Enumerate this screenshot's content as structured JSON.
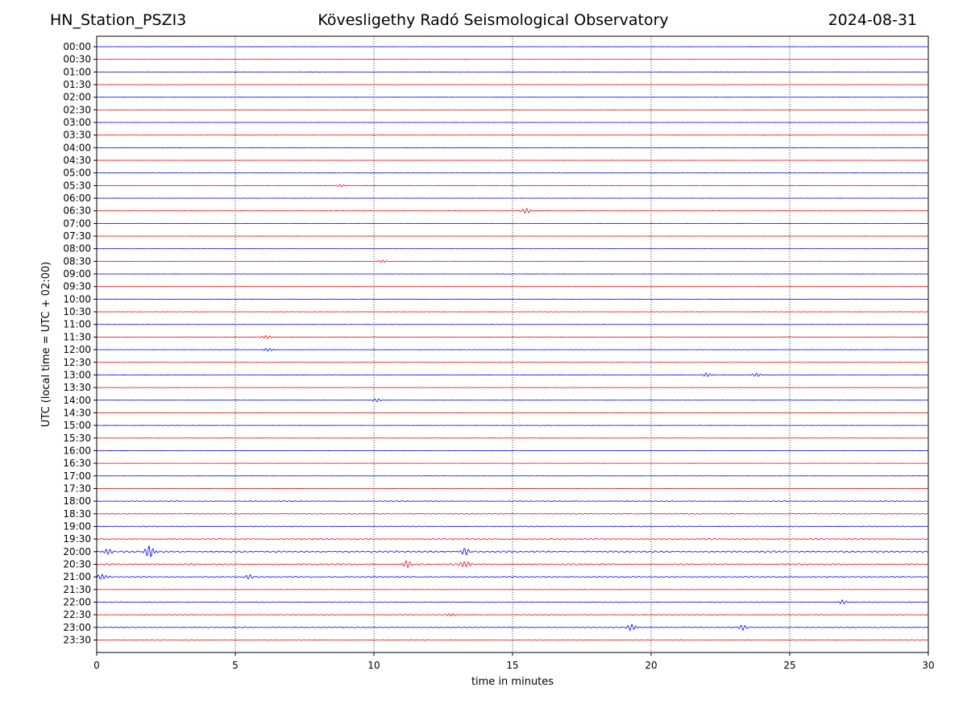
{
  "header": {
    "station": "HN_Station_PSZI3",
    "observatory": "Kövesligethy Radó Seismological Observatory",
    "date": "2024-08-31"
  },
  "chart_data": {
    "type": "line",
    "title": "Kövesligethy Radó Seismological Observatory",
    "xlabel": "time in minutes",
    "ylabel": "UTC (local time = UTC + 02:00)",
    "xlim": [
      0,
      30
    ],
    "x_ticks": [
      0,
      5,
      10,
      15,
      20,
      25,
      30
    ],
    "vertical_grid": true,
    "colors": [
      "#0000ff",
      "#ff0000"
    ],
    "rows": [
      {
        "label": "00:00",
        "level": 0.1
      },
      {
        "label": "00:30",
        "level": 0.1
      },
      {
        "label": "01:00",
        "level": 0.12
      },
      {
        "label": "01:30",
        "level": 0.1
      },
      {
        "label": "02:00",
        "level": 0.1
      },
      {
        "label": "02:30",
        "level": 0.1
      },
      {
        "label": "03:00",
        "level": 0.1
      },
      {
        "label": "03:30",
        "level": 0.12
      },
      {
        "label": "04:00",
        "level": 0.1
      },
      {
        "label": "04:30",
        "level": 0.1
      },
      {
        "label": "05:00",
        "level": 0.18
      },
      {
        "label": "05:30",
        "level": 0.15
      },
      {
        "label": "06:00",
        "level": 0.12
      },
      {
        "label": "06:30",
        "level": 0.15
      },
      {
        "label": "07:00",
        "level": 0.12
      },
      {
        "label": "07:30",
        "level": 0.1
      },
      {
        "label": "08:00",
        "level": 0.1
      },
      {
        "label": "08:30",
        "level": 0.15
      },
      {
        "label": "09:00",
        "level": 0.15
      },
      {
        "label": "09:30",
        "level": 0.1
      },
      {
        "label": "10:00",
        "level": 0.15
      },
      {
        "label": "10:30",
        "level": 0.18
      },
      {
        "label": "11:00",
        "level": 0.18
      },
      {
        "label": "11:30",
        "level": 0.2
      },
      {
        "label": "12:00",
        "level": 0.2
      },
      {
        "label": "12:30",
        "level": 0.15
      },
      {
        "label": "13:00",
        "level": 0.25
      },
      {
        "label": "13:30",
        "level": 0.12
      },
      {
        "label": "14:00",
        "level": 0.12
      },
      {
        "label": "14:30",
        "level": 0.15
      },
      {
        "label": "15:00",
        "level": 0.15
      },
      {
        "label": "15:30",
        "level": 0.1
      },
      {
        "label": "16:00",
        "level": 0.1
      },
      {
        "label": "16:30",
        "level": 0.1
      },
      {
        "label": "17:00",
        "level": 0.1
      },
      {
        "label": "17:30",
        "level": 0.12
      },
      {
        "label": "18:00",
        "level": 0.4
      },
      {
        "label": "18:30",
        "level": 0.45
      },
      {
        "label": "19:00",
        "level": 0.45
      },
      {
        "label": "19:30",
        "level": 0.6
      },
      {
        "label": "20:00",
        "level": 0.9
      },
      {
        "label": "20:30",
        "level": 0.8
      },
      {
        "label": "21:00",
        "level": 0.6
      },
      {
        "label": "21:30",
        "level": 0.2
      },
      {
        "label": "22:00",
        "level": 0.45
      },
      {
        "label": "22:30",
        "level": 0.4
      },
      {
        "label": "23:00",
        "level": 0.5
      },
      {
        "label": "23:30",
        "level": 0.4
      }
    ],
    "events": [
      {
        "row": "06:30",
        "minute": 15.5,
        "amplitude": 3.0
      },
      {
        "row": "05:30",
        "minute": 8.8,
        "amplitude": 1.5
      },
      {
        "row": "08:30",
        "minute": 10.3,
        "amplitude": 1.5
      },
      {
        "row": "11:30",
        "minute": 6.1,
        "amplitude": 2.0
      },
      {
        "row": "12:00",
        "minute": 6.2,
        "amplitude": 2.0
      },
      {
        "row": "13:00",
        "minute": 22.0,
        "amplitude": 2.0
      },
      {
        "row": "13:00",
        "minute": 23.8,
        "amplitude": 2.0
      },
      {
        "row": "14:00",
        "minute": 10.1,
        "amplitude": 2.0
      },
      {
        "row": "20:00",
        "minute": 1.9,
        "amplitude": 7.0
      },
      {
        "row": "20:00",
        "minute": 13.3,
        "amplitude": 4.0
      },
      {
        "row": "20:00",
        "minute": 0.4,
        "amplitude": 3.5
      },
      {
        "row": "20:30",
        "minute": 11.2,
        "amplitude": 4.0
      },
      {
        "row": "20:30",
        "minute": 13.3,
        "amplitude": 4.0
      },
      {
        "row": "21:00",
        "minute": 0.2,
        "amplitude": 3.5
      },
      {
        "row": "21:00",
        "minute": 5.5,
        "amplitude": 2.5
      },
      {
        "row": "22:00",
        "minute": 26.9,
        "amplitude": 2.5
      },
      {
        "row": "22:30",
        "minute": 12.8,
        "amplitude": 2.0
      },
      {
        "row": "23:00",
        "minute": 19.3,
        "amplitude": 4.0
      },
      {
        "row": "23:00",
        "minute": 23.3,
        "amplitude": 3.0
      }
    ]
  }
}
